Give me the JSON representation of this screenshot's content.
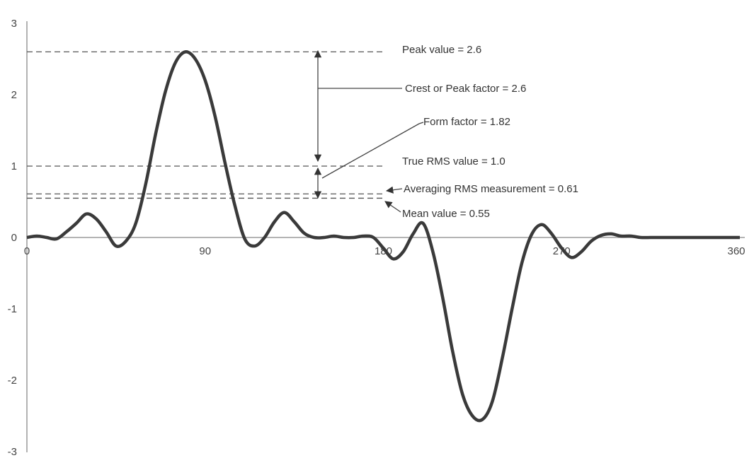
{
  "chart_data": {
    "type": "line",
    "title": "",
    "xlabel": "",
    "ylabel": "",
    "xlim": [
      0,
      360
    ],
    "ylim": [
      -3,
      3
    ],
    "x_ticks": [
      "0",
      "90",
      "180",
      "270",
      "360"
    ],
    "y_ticks": [
      "3",
      "2",
      "1",
      "0",
      "-1",
      "-2",
      "-3"
    ],
    "grid": false,
    "series": [
      {
        "x": [
          0,
          5,
          10,
          15,
          20,
          25,
          30,
          35,
          40,
          45,
          50,
          55,
          60,
          65,
          70,
          75,
          80,
          85,
          90,
          95,
          100,
          105,
          110,
          115,
          120,
          125,
          130,
          135,
          140,
          145,
          150,
          155,
          160,
          165,
          170,
          175,
          180,
          185,
          190,
          195,
          200,
          205,
          210,
          215,
          220,
          225,
          230,
          235,
          240,
          245,
          250,
          255,
          260,
          265,
          270,
          275,
          280,
          285,
          290,
          295,
          300,
          305,
          310,
          315,
          320,
          325,
          330,
          335,
          340,
          345,
          350,
          355,
          360
        ],
        "y": [
          0.0,
          0.02,
          0.0,
          -0.02,
          0.08,
          0.2,
          0.33,
          0.26,
          0.08,
          -0.12,
          -0.05,
          0.2,
          0.75,
          1.45,
          2.05,
          2.45,
          2.6,
          2.5,
          2.2,
          1.7,
          1.05,
          0.45,
          -0.02,
          -0.12,
          0.0,
          0.22,
          0.35,
          0.22,
          0.06,
          0.0,
          0.0,
          0.02,
          0.0,
          0.0,
          0.02,
          0.0,
          -0.15,
          -0.3,
          -0.2,
          0.05,
          0.2,
          -0.2,
          -0.85,
          -1.6,
          -2.2,
          -2.5,
          -2.55,
          -2.3,
          -1.7,
          -1.0,
          -0.35,
          0.05,
          0.18,
          0.05,
          -0.15,
          -0.28,
          -0.2,
          -0.05,
          0.03,
          0.05,
          0.02,
          0.02,
          0.0,
          0.0,
          0.0,
          0.0,
          0.0,
          0.0,
          0.0,
          0.0,
          0.0,
          0.0,
          0.0
        ]
      }
    ],
    "reference_lines": [
      {
        "y": 2.6,
        "label": "Peak value = 2.6"
      },
      {
        "y": 1.0,
        "label": "True RMS value = 1.0"
      },
      {
        "y": 0.61,
        "label": "Averaging RMS measurement = 0.61"
      },
      {
        "y": 0.55,
        "label": "Mean value = 0.55"
      }
    ],
    "annotations": [
      {
        "label": "Crest or Peak factor = 2.6"
      },
      {
        "label": "Form factor = 1.82"
      }
    ]
  }
}
